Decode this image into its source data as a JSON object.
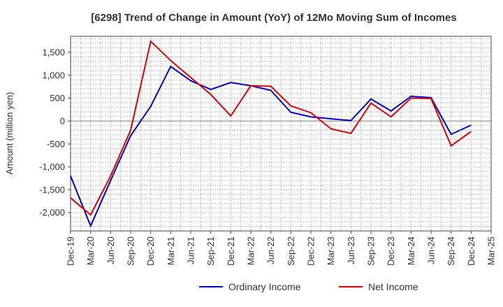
{
  "chart_data": {
    "type": "line",
    "title": "[6298]  Trend of Change in Amount (YoY) of 12Mo Moving Sum of Incomes",
    "xlabel": "",
    "ylabel": "Amount (million yen)",
    "ylim": [
      -2400,
      1850
    ],
    "yticks": [
      -2000,
      -1500,
      -1000,
      -500,
      0,
      500,
      1000,
      1500
    ],
    "ytick_labels": [
      "-2,000",
      "-1,500",
      "-1,000",
      "-500",
      "0",
      "500",
      "1,000",
      "1,500"
    ],
    "categories": [
      "Dec-19",
      "Mar-20",
      "Jun-20",
      "Sep-20",
      "Dec-20",
      "Mar-21",
      "Jun-21",
      "Sep-21",
      "Dec-21",
      "Mar-22",
      "Jun-22",
      "Sep-22",
      "Dec-22",
      "Mar-23",
      "Jun-23",
      "Sep-23",
      "Dec-23",
      "Mar-24",
      "Jun-24",
      "Sep-24",
      "Dec-24",
      "Mar-25"
    ],
    "grid": true,
    "legend_position": "bottom",
    "series": [
      {
        "name": "Ordinary Income",
        "color": "#0000cc",
        "values": [
          -1200,
          -2290,
          -1300,
          -320,
          320,
          1190,
          880,
          690,
          840,
          770,
          670,
          190,
          90,
          50,
          10,
          480,
          220,
          540,
          510,
          -290,
          -90,
          null
        ]
      },
      {
        "name": "Net Income",
        "color": "#dd0000",
        "values": [
          -1680,
          -2050,
          -1200,
          -200,
          1740,
          1320,
          950,
          580,
          110,
          770,
          760,
          330,
          180,
          -170,
          -270,
          390,
          90,
          500,
          490,
          -540,
          -230,
          null
        ]
      }
    ]
  }
}
